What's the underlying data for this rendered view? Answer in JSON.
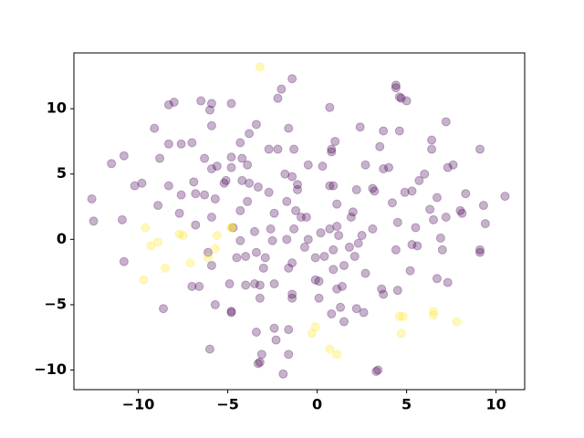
{
  "chart_data": {
    "type": "scatter",
    "xlim": [
      -13.6,
      11.6
    ],
    "ylim": [
      -11.5,
      14.27
    ],
    "xticks": [
      {
        "value": -10,
        "label": "−10"
      },
      {
        "value": -5,
        "label": "−5"
      },
      0,
      5,
      10
    ],
    "yticks": [
      {
        "value": -10,
        "label": "−10"
      },
      {
        "value": -5,
        "label": "−5"
      },
      0,
      5,
      10
    ],
    "grid": false,
    "series": [
      {
        "color": "#440154",
        "x": [
          -1.4,
          -2.0,
          -2.2,
          -8.3,
          -8.0,
          -6.5,
          -5.9,
          -4.8,
          -6.0,
          0.7,
          4.4,
          4.4,
          4.6,
          4.7,
          5.0,
          7.2,
          -9.1,
          -5.9,
          -3.4,
          -1.6,
          2.4,
          3.7,
          4.6,
          -3.8,
          -8.3,
          -7.6,
          -7.0,
          -4.3,
          1.0,
          6.4,
          3.5,
          0.8,
          0.8,
          -2.7,
          -2.2,
          -1.3,
          6.4,
          9.1,
          -10.8,
          -6.3,
          -4.8,
          -4.2,
          -8.8,
          -11.5,
          -5.9,
          -5.6,
          -4.8,
          -3.9,
          -0.5,
          0.3,
          -1.8,
          -1.4,
          2.7,
          3.7,
          4.0,
          6.0,
          5.7,
          7.3,
          7.6,
          -8.3,
          -9.8,
          -10.2,
          -5.2,
          -5.1,
          -6.9,
          -4.2,
          -3.8,
          -3.3,
          -1.1,
          -1.1,
          -2.7,
          0.7,
          0.9,
          2.2,
          3.1,
          3.2,
          4.9,
          5.3,
          6.7,
          8.3,
          10.5,
          -12.6,
          -7.6,
          -6.8,
          -6.3,
          -5.7,
          -8.9,
          -3.9,
          -4.3,
          -1.7,
          1.1,
          4.2,
          6.3,
          8.0,
          8.1,
          9.3,
          -7.7,
          -5.9,
          -2.4,
          -1.2,
          -0.6,
          -0.9,
          2.0,
          1.9,
          6.5,
          7.2,
          -10.9,
          -12.5,
          4.5,
          9.4,
          -6.8,
          -4.7,
          -3.5,
          -2.6,
          -1.3,
          0.7,
          1.1,
          3.1,
          5.5,
          0.2,
          1.2,
          2.5,
          6.9,
          -1.7,
          -0.5,
          -4.3,
          -2.5,
          2.3,
          5.3,
          5.6,
          1.8,
          4.4,
          7.0,
          9.1,
          0.9,
          -3.4,
          -0.7,
          -4.0,
          -4.5,
          -2.9,
          -0.1,
          0.4,
          2.1,
          9.1,
          -6.1,
          -10.8,
          -5.9,
          -1.4,
          1.5,
          -3.0,
          -1.6,
          0.9,
          2.7,
          5.2,
          -0.1,
          0.1,
          6.7,
          7.3,
          -2.4,
          -4.9,
          -4.0,
          -3.5,
          -3.2,
          -7.0,
          -6.6,
          1.1,
          1.4,
          3.6,
          3.7,
          4.5,
          -1.4,
          -1.4,
          -3.2,
          0.1,
          -5.7,
          -8.6,
          1.3,
          2.2,
          2.6,
          -4.8,
          -4.8,
          0.8,
          1.5,
          -2.4,
          -3.4,
          -2.3,
          -1.6,
          -6.0,
          -3.1,
          -1.6,
          -3.2,
          -3.3,
          3.4,
          3.3,
          -1.9
        ],
        "values": [
          12.3,
          11.5,
          10.8,
          10.3,
          10.5,
          10.6,
          10.4,
          10.4,
          9.9,
          10.1,
          11.8,
          11.6,
          10.9,
          10.8,
          10.6,
          9.0,
          8.5,
          8.7,
          8.8,
          8.5,
          8.6,
          8.3,
          8.3,
          8.1,
          7.3,
          7.3,
          7.4,
          7.4,
          7.5,
          7.6,
          7.1,
          6.9,
          6.7,
          6.9,
          6.9,
          6.9,
          6.9,
          6.9,
          6.4,
          6.2,
          6.3,
          6.2,
          6.2,
          5.8,
          5.4,
          5.6,
          5.5,
          5.7,
          5.7,
          5.6,
          5.0,
          4.8,
          5.7,
          5.4,
          5.5,
          5.0,
          4.5,
          5.5,
          5.7,
          4.1,
          4.3,
          4.1,
          4.3,
          4.5,
          4.4,
          4.5,
          4.3,
          4.0,
          4.2,
          3.8,
          3.6,
          4.1,
          4.1,
          3.8,
          3.9,
          3.7,
          3.6,
          3.7,
          3.2,
          3.5,
          3.3,
          3.1,
          3.4,
          3.5,
          3.4,
          3.1,
          2.6,
          2.9,
          2.2,
          2.9,
          2.7,
          2.8,
          2.3,
          2.2,
          2.0,
          2.6,
          2.0,
          1.7,
          2.0,
          2.2,
          1.7,
          1.7,
          2.1,
          1.7,
          1.5,
          1.7,
          1.5,
          1.4,
          1.3,
          1.2,
          1.1,
          0.9,
          0.6,
          0.8,
          0.8,
          0.8,
          1.0,
          0.8,
          0.9,
          0.5,
          0.3,
          0.3,
          0.1,
          0.0,
          0.0,
          -0.1,
          -0.1,
          -0.3,
          -0.4,
          -0.5,
          -0.6,
          -0.8,
          -0.8,
          -0.8,
          -0.8,
          -1.0,
          -0.6,
          -1.3,
          -1.4,
          -1.4,
          -1.4,
          -1.3,
          -1.3,
          -1.0,
          -1.0,
          -1.7,
          -2.0,
          -1.8,
          -2.0,
          -2.2,
          -2.2,
          -2.3,
          -2.6,
          -2.4,
          -3.1,
          -3.2,
          -3.0,
          -3.3,
          -3.4,
          -3.4,
          -3.5,
          -3.4,
          -3.5,
          -3.6,
          -3.6,
          -3.8,
          -3.6,
          -3.8,
          -4.2,
          -3.9,
          -4.2,
          -4.5,
          -4.5,
          -4.5,
          -5.0,
          -5.3,
          -5.2,
          -5.3,
          -5.6,
          -5.5,
          -5.6,
          -5.7,
          -6.3,
          -6.8,
          -7.1,
          -7.7,
          -6.9,
          -8.4,
          -8.8,
          -8.8,
          -9.4,
          -9.5,
          -10.0,
          -10.1,
          -10.3
        ]
      },
      {
        "color": "#fde725",
        "x": [
          -3.2,
          -9.6,
          -9.3,
          -8.9,
          -9.7,
          -8.5,
          -7.7,
          -7.5,
          -7.1,
          -6.1,
          -5.7,
          -5.6,
          -4.8,
          -4.8,
          -0.1,
          -0.3,
          0.7,
          1.1,
          4.6,
          4.8,
          4.7,
          6.5,
          6.5,
          7.8
        ],
        "values": [
          13.2,
          0.9,
          -0.5,
          -0.2,
          -3.1,
          -2.2,
          0.4,
          0.3,
          -1.8,
          -1.4,
          -0.7,
          0.3,
          0.9,
          0.9,
          -6.7,
          -7.2,
          -8.4,
          -8.8,
          -5.9,
          -5.9,
          -7.2,
          -5.5,
          -5.8,
          -6.3
        ]
      }
    ]
  }
}
